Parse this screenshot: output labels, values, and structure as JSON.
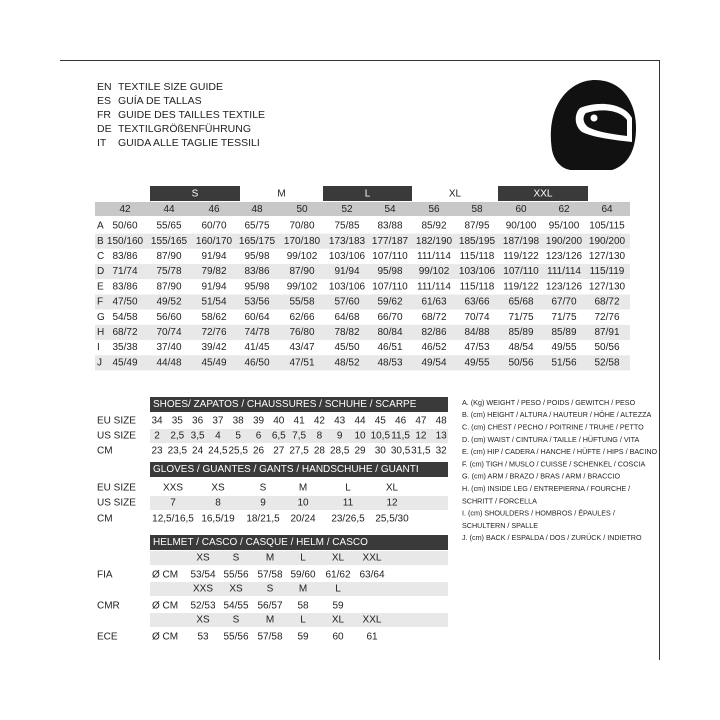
{
  "header": {
    "lines": [
      {
        "code": "EN",
        "text": "TEXTILE SIZE GUIDE"
      },
      {
        "code": "ES",
        "text": "GUÍA DE TALLAS"
      },
      {
        "code": "FR",
        "text": "GUIDE DES TAILLES TEXTILE"
      },
      {
        "code": "DE",
        "text": "TEXTILGRÖßENFÜHRUNG"
      },
      {
        "code": "IT",
        "text": "GUIDA ALLE TAGLIE TESSILI"
      }
    ]
  },
  "textile": {
    "size_groups": [
      "S",
      "M",
      "L",
      "XL",
      "XXL"
    ],
    "columns": [
      "42",
      "44",
      "46",
      "48",
      "50",
      "52",
      "54",
      "56",
      "58",
      "60",
      "62",
      "64"
    ],
    "rows": [
      {
        "label": "A",
        "values": [
          "50/60",
          "55/65",
          "60/70",
          "65/75",
          "70/80",
          "75/85",
          "83/88",
          "85/92",
          "87/95",
          "90/100",
          "95/100",
          "105/115"
        ]
      },
      {
        "label": "B",
        "values": [
          "150/160",
          "155/165",
          "160/170",
          "165/175",
          "170/180",
          "173/183",
          "177/187",
          "182/190",
          "185/195",
          "187/198",
          "190/200",
          "190/200"
        ]
      },
      {
        "label": "C",
        "values": [
          "83/86",
          "87/90",
          "91/94",
          "95/98",
          "99/102",
          "103/106",
          "107/110",
          "111/114",
          "115/118",
          "119/122",
          "123/126",
          "127/130"
        ]
      },
      {
        "label": "D",
        "values": [
          "71/74",
          "75/78",
          "79/82",
          "83/86",
          "87/90",
          "91/94",
          "95/98",
          "99/102",
          "103/106",
          "107/110",
          "111/114",
          "115/119"
        ]
      },
      {
        "label": "E",
        "values": [
          "83/86",
          "87/90",
          "91/94",
          "95/98",
          "99/102",
          "103/106",
          "107/110",
          "111/114",
          "115/118",
          "119/122",
          "123/126",
          "127/130"
        ]
      },
      {
        "label": "F",
        "values": [
          "47/50",
          "49/52",
          "51/54",
          "53/56",
          "55/58",
          "57/60",
          "59/62",
          "61/63",
          "63/66",
          "65/68",
          "67/70",
          "68/72"
        ]
      },
      {
        "label": "G",
        "values": [
          "54/58",
          "56/60",
          "58/62",
          "60/64",
          "62/66",
          "64/68",
          "66/70",
          "68/72",
          "70/74",
          "71/75",
          "71/75",
          "72/76"
        ]
      },
      {
        "label": "H",
        "values": [
          "68/72",
          "70/74",
          "72/76",
          "74/78",
          "76/80",
          "78/82",
          "80/84",
          "82/86",
          "84/88",
          "85/89",
          "85/89",
          "87/91"
        ]
      },
      {
        "label": "I",
        "values": [
          "35/38",
          "37/40",
          "39/42",
          "41/45",
          "43/47",
          "45/50",
          "46/51",
          "46/52",
          "47/53",
          "48/54",
          "49/55",
          "50/56"
        ]
      },
      {
        "label": "J",
        "values": [
          "45/49",
          "44/48",
          "45/49",
          "46/50",
          "47/51",
          "48/52",
          "48/53",
          "49/54",
          "49/55",
          "50/56",
          "51/56",
          "52/58"
        ]
      }
    ]
  },
  "shoes": {
    "title": "SHOES/ ZAPATOS / CHAUSSURES / SCHUHE / SCARPE",
    "rows": [
      {
        "label": "EU SIZE",
        "values": [
          "34",
          "35",
          "36",
          "37",
          "38",
          "39",
          "40",
          "41",
          "42",
          "43",
          "44",
          "45",
          "46",
          "47",
          "48"
        ]
      },
      {
        "label": "US SIZE",
        "values": [
          "2",
          "2,5",
          "3,5",
          "4",
          "5",
          "6",
          "6,5",
          "7,5",
          "8",
          "9",
          "10",
          "10,5",
          "11,5",
          "12",
          "13"
        ]
      },
      {
        "label": "CM",
        "values": [
          "23",
          "23,5",
          "24",
          "24,5",
          "25,5",
          "26",
          "27",
          "27,5",
          "28",
          "28,5",
          "29",
          "30",
          "30,5",
          "31,5",
          "32"
        ]
      }
    ]
  },
  "gloves": {
    "title": "GLOVES / GUANTES / GANTS / HANDSCHUHE / GUANTI",
    "rows": [
      {
        "label": "EU SIZE",
        "values": [
          "XXS",
          "XS",
          "S",
          "M",
          "L",
          "XL"
        ]
      },
      {
        "label": "US SIZE",
        "values": [
          "7",
          "8",
          "9",
          "10",
          "11",
          "12"
        ]
      },
      {
        "label": "CM",
        "values": [
          "12,5/16,5",
          "16,5/19",
          "18/21,5",
          "20/24",
          "23/26,5",
          "25,5/30"
        ]
      }
    ]
  },
  "helmet": {
    "title": "HELMET / CASCO / CASQUE / HELM / CASCO",
    "standards": [
      {
        "name": "FIA",
        "unit": "Ø CM",
        "sizes": [
          "XS",
          "S",
          "M",
          "L",
          "XL",
          "XXL"
        ],
        "values": [
          "53/54",
          "55/56",
          "57/58",
          "59/60",
          "61/62",
          "63/64"
        ]
      },
      {
        "name": "CMR",
        "unit": "Ø CM",
        "sizes": [
          "XXS",
          "XS",
          "S",
          "M",
          "L"
        ],
        "values": [
          "52/53",
          "54/55",
          "56/57",
          "58",
          "59"
        ]
      },
      {
        "name": "ECE",
        "unit": "Ø CM",
        "sizes": [
          "XS",
          "S",
          "M",
          "L",
          "XL",
          "XXL"
        ],
        "values": [
          "53",
          "55/56",
          "57/58",
          "59",
          "60",
          "61"
        ]
      }
    ]
  },
  "legend": {
    "lines": [
      "A. (Kg) WEIGHT / PESO / POIDS / GEWITCH / PESO",
      "B. (cm) HEIGHT / ALTURA / HAUTEUR / HÖHE / ALTEZZA",
      "C. (cm) CHEST / PECHO / POITRINE / TRUHE / PETTO",
      "D. (cm) WAIST / CINTURA / TAILLE / HÜFTUNG / VITA",
      "E. (cm) HIP / CADERA / HANCHE / HÜFTE / HIPS / BACINO",
      "F. (cm) TIGH / MUSLO / CUISSE / SCHENKEL / COSCIA",
      "G. (cm) ARM / BRAZO / BRAS / ARM / BRACCIO",
      "H. (cm) INSIDE LEG / ENTREPIERNA / FOURCHE /",
      "SCHRITT / FORCELLA",
      "I. (cm) SHOULDERS / HOMBROS / ÉPAULES /",
      "SCHULTERN / SPALLE",
      "J. (cm) BACK / ESPALDA / DOS / ZURÜCK / INDIETRO"
    ]
  }
}
